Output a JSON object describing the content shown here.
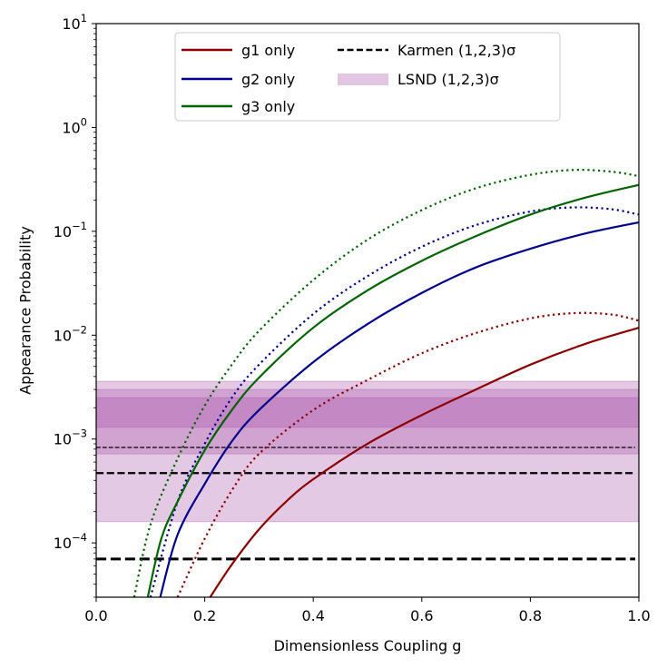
{
  "chart_data": {
    "type": "line",
    "xlabel": "Dimensionless Coupling g",
    "ylabel": "Appearance Probability",
    "xlim": [
      0.0,
      1.0
    ],
    "ylim": [
      3e-05,
      10
    ],
    "yscale": "log",
    "x_ticks": [
      {
        "value": 0.0,
        "label": "0.0"
      },
      {
        "value": 0.2,
        "label": "0.2"
      },
      {
        "value": 0.4,
        "label": "0.4"
      },
      {
        "value": 0.6,
        "label": "0.6"
      },
      {
        "value": 0.8,
        "label": "0.8"
      },
      {
        "value": 1.0,
        "label": "1.0"
      }
    ],
    "y_ticks": [
      {
        "exp": -4,
        "base": "10",
        "sup": "−4"
      },
      {
        "exp": -3,
        "base": "10",
        "sup": "−3"
      },
      {
        "exp": -2,
        "base": "10",
        "sup": "−2"
      },
      {
        "exp": -1,
        "base": "10",
        "sup": "−1"
      },
      {
        "exp": 0,
        "base": "10",
        "sup": "0"
      },
      {
        "exp": 1,
        "base": "10",
        "sup": "1"
      }
    ],
    "legend": {
      "placement": "upper-center",
      "entries": [
        {
          "label": "g1 only",
          "color": "#8b0000",
          "style": "solid"
        },
        {
          "label": "g2 only",
          "color": "#00008b",
          "style": "solid"
        },
        {
          "label": "g3 only",
          "color": "#006400",
          "style": "solid"
        },
        {
          "label": "Karmen (1,2,3)σ",
          "color": "#000000",
          "style": "dashed"
        },
        {
          "label": "LSND (1,2,3)σ",
          "color": "#e2c6e2",
          "style": "band"
        }
      ]
    },
    "series": [
      {
        "name": "g1 only",
        "style": "solid",
        "color": "#8b0000",
        "x": [
          0.21,
          0.25,
          0.3,
          0.35,
          0.4,
          0.5,
          0.6,
          0.7,
          0.8,
          0.9,
          1.0
        ],
        "y": [
          3e-05,
          6.2e-05,
          0.000135,
          0.00025,
          0.00041,
          0.0009,
          0.0017,
          0.003,
          0.0052,
          0.0082,
          0.0118
        ]
      },
      {
        "name": "g1 only (dotted)",
        "style": "dotted",
        "color": "#8b0000",
        "x": [
          0.15,
          0.2,
          0.25,
          0.3,
          0.4,
          0.5,
          0.6,
          0.7,
          0.8,
          0.88,
          0.95,
          1.0
        ],
        "y": [
          3e-05,
          0.00011,
          0.00032,
          0.00072,
          0.0019,
          0.0037,
          0.0067,
          0.0105,
          0.0145,
          0.0163,
          0.0158,
          0.0138
        ]
      },
      {
        "name": "g2 only",
        "style": "solid",
        "color": "#00008b",
        "x": [
          0.118,
          0.15,
          0.2,
          0.25,
          0.3,
          0.4,
          0.5,
          0.6,
          0.7,
          0.8,
          0.9,
          1.0
        ],
        "y": [
          3e-05,
          0.00012,
          0.00037,
          0.00095,
          0.0019,
          0.0055,
          0.0128,
          0.0255,
          0.045,
          0.068,
          0.095,
          0.122
        ]
      },
      {
        "name": "g2 only (dotted)",
        "style": "dotted",
        "color": "#00008b",
        "x": [
          0.1,
          0.15,
          0.2,
          0.25,
          0.3,
          0.4,
          0.5,
          0.6,
          0.7,
          0.8,
          0.88,
          0.95,
          1.0
        ],
        "y": [
          3e-05,
          0.00025,
          0.0009,
          0.0025,
          0.0052,
          0.016,
          0.037,
          0.071,
          0.115,
          0.155,
          0.17,
          0.163,
          0.145
        ]
      },
      {
        "name": "g3 only",
        "style": "solid",
        "color": "#006400",
        "x": [
          0.095,
          0.12,
          0.15,
          0.2,
          0.25,
          0.3,
          0.4,
          0.5,
          0.6,
          0.7,
          0.8,
          0.9,
          1.0
        ],
        "y": [
          3e-05,
          0.00011,
          0.00025,
          0.00078,
          0.0019,
          0.0039,
          0.0118,
          0.027,
          0.052,
          0.09,
          0.145,
          0.21,
          0.28
        ]
      },
      {
        "name": "g3 only (dotted)",
        "style": "dotted",
        "color": "#006400",
        "x": [
          0.07,
          0.1,
          0.15,
          0.2,
          0.25,
          0.3,
          0.4,
          0.5,
          0.6,
          0.7,
          0.8,
          0.88,
          0.95,
          1.0
        ],
        "y": [
          3e-05,
          0.00015,
          0.00065,
          0.0021,
          0.0052,
          0.011,
          0.034,
          0.083,
          0.16,
          0.26,
          0.35,
          0.39,
          0.375,
          0.34
        ]
      }
    ],
    "karmen_lines": [
      {
        "label": "1σ",
        "y": 0.00083,
        "width": 1.3
      },
      {
        "label": "2σ",
        "y": 0.00047,
        "width": 2.2
      },
      {
        "label": "3σ",
        "y": 7e-05,
        "width": 3.0
      }
    ],
    "lsnd_bands": [
      {
        "label": "1σ",
        "y_low": 0.0013,
        "y_high": 0.0025
      },
      {
        "label": "2σ",
        "y_low": 0.00072,
        "y_high": 0.003
      },
      {
        "label": "3σ",
        "y_low": 0.00016,
        "y_high": 0.0036
      }
    ]
  }
}
